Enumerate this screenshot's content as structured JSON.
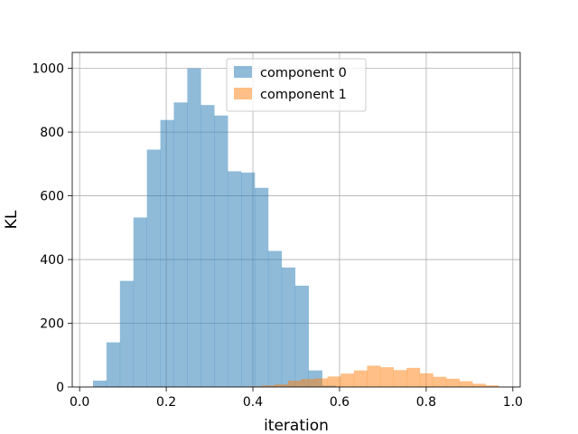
{
  "chart_data": {
    "type": "bar",
    "xlabel": "iteration",
    "ylabel": "KL",
    "xlim": [
      -0.017,
      1.017
    ],
    "ylim": [
      0,
      1050
    ],
    "xticks": [
      0.0,
      0.2,
      0.4,
      0.6,
      0.8,
      1.0
    ],
    "xtick_labels": [
      "0.0",
      "0.2",
      "0.4",
      "0.6",
      "0.8",
      "1.0"
    ],
    "yticks": [
      0,
      200,
      400,
      600,
      800,
      1000
    ],
    "ytick_labels": [
      "0",
      "200",
      "400",
      "600",
      "800",
      "1000"
    ],
    "grid": true,
    "legend_position": "upper center",
    "series": [
      {
        "name": "component 0",
        "color": "#1f77b4",
        "alpha": 0.5,
        "bin_edges": [
          0.0309,
          0.062,
          0.0931,
          0.1242,
          0.1553,
          0.1864,
          0.2175,
          0.2486,
          0.2797,
          0.3108,
          0.3419,
          0.373,
          0.4041,
          0.4352,
          0.4663,
          0.4974,
          0.5285,
          0.5596,
          0.5907
        ],
        "counts": [
          20,
          140,
          333,
          532,
          745,
          838,
          893,
          1000,
          885,
          852,
          677,
          673,
          625,
          427,
          375,
          318,
          52,
          4
        ]
      },
      {
        "name": "component 1",
        "color": "#ff7f0e",
        "alpha": 0.5,
        "bin_edges": [
          0.39,
          0.4204,
          0.4508,
          0.4812,
          0.5116,
          0.542,
          0.5724,
          0.6028,
          0.6332,
          0.6636,
          0.694,
          0.7244,
          0.7548,
          0.7852,
          0.8156,
          0.846,
          0.8764,
          0.9068,
          0.9372,
          0.9676
        ],
        "counts": [
          2,
          5,
          8,
          20,
          25,
          27,
          33,
          42,
          52,
          67,
          62,
          53,
          60,
          43,
          32,
          26,
          18,
          10,
          5
        ]
      }
    ],
    "series_overrides_note_free": true
  }
}
